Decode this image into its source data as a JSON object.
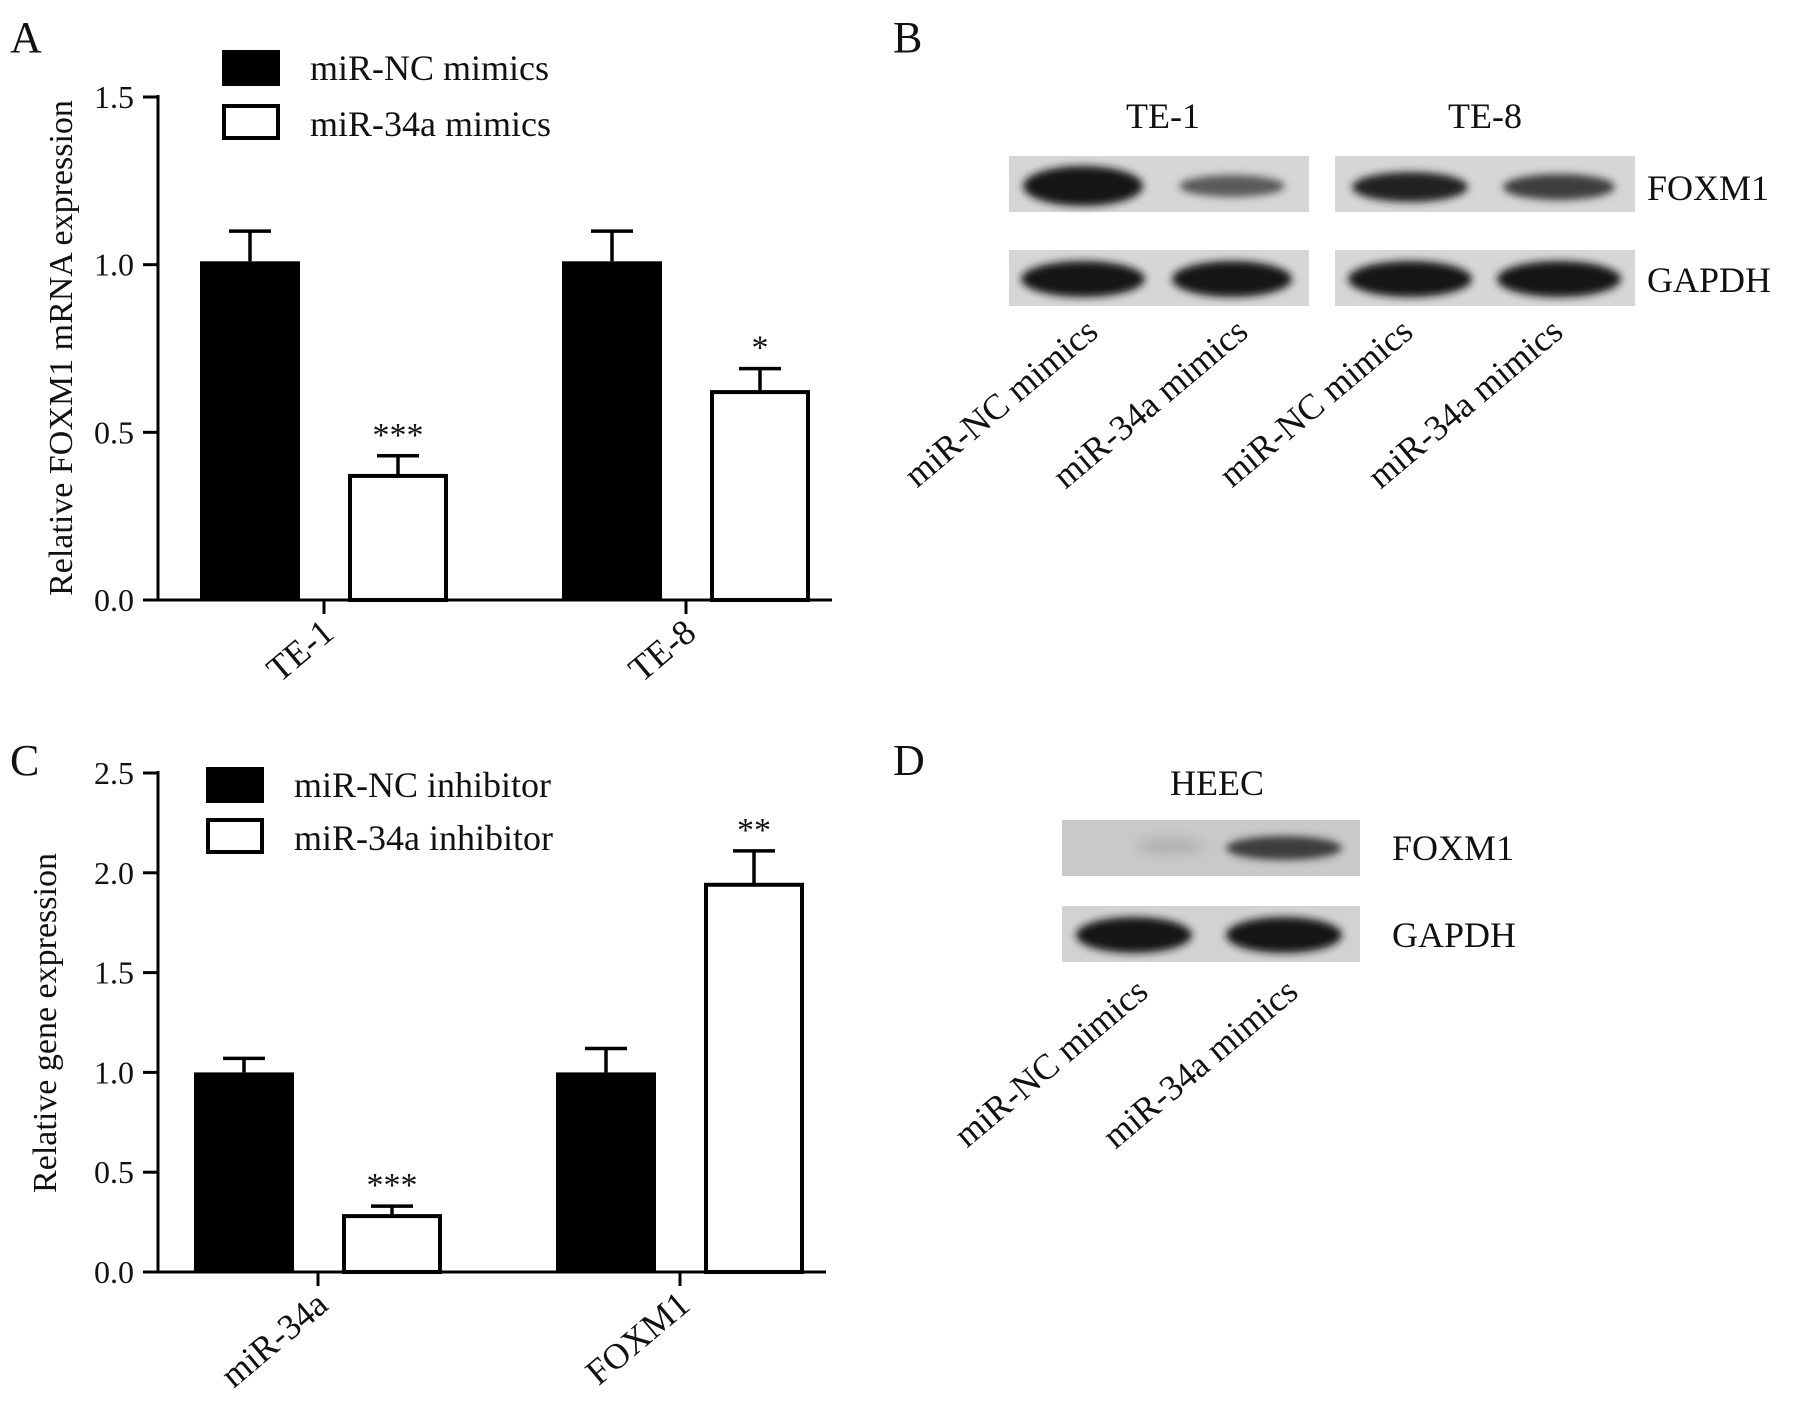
{
  "panels": {
    "a": "A",
    "b": "B",
    "c": "C",
    "d": "D"
  },
  "chart_data": [
    {
      "id": "A",
      "type": "bar",
      "ylabel": "Relative FOXM1 mRNA expression",
      "ylim": [
        0,
        1.5
      ],
      "yticks": [
        "0.0",
        "0.5",
        "1.0",
        "1.5"
      ],
      "categories": [
        "TE-1",
        "TE-8"
      ],
      "series": [
        {
          "name": "miR-NC mimics",
          "values": [
            1.01,
            1.01
          ],
          "errors": [
            0.09,
            0.09
          ],
          "color": "#000000"
        },
        {
          "name": "miR-34a mimics",
          "values": [
            0.37,
            0.62
          ],
          "errors": [
            0.06,
            0.07
          ],
          "color": "#ffffff"
        }
      ],
      "significance": [
        [
          "",
          "***"
        ],
        [
          "",
          "*"
        ]
      ],
      "legend_position": "top-left"
    },
    {
      "id": "C",
      "type": "bar",
      "ylabel": "Relative gene expression",
      "ylim": [
        0,
        2.5
      ],
      "yticks": [
        "0.0",
        "0.5",
        "1.0",
        "1.5",
        "2.0",
        "2.5"
      ],
      "categories": [
        "miR-34a",
        "FOXM1"
      ],
      "series": [
        {
          "name": "miR-NC inhibitor",
          "values": [
            1.0,
            1.0
          ],
          "errors": [
            0.07,
            0.12
          ],
          "color": "#000000"
        },
        {
          "name": "miR-34a inhibitor",
          "values": [
            0.28,
            1.94
          ],
          "errors": [
            0.05,
            0.17
          ],
          "color": "#ffffff"
        }
      ],
      "significance": [
        [
          "",
          "***"
        ],
        [
          "",
          "**"
        ]
      ],
      "legend_position": "top-left"
    }
  ],
  "blot_b": {
    "groups": [
      "TE-1",
      "TE-8"
    ],
    "proteins": [
      "FOXM1",
      "GAPDH"
    ],
    "lanes": [
      "miR-NC mimics",
      "miR-34a mimics",
      "miR-NC mimics",
      "miR-34a mimics"
    ]
  },
  "blot_d": {
    "group": "HEEC",
    "proteins": [
      "FOXM1",
      "GAPDH"
    ],
    "lanes": [
      "miR-NC mimics",
      "miR-34a mimics"
    ]
  }
}
